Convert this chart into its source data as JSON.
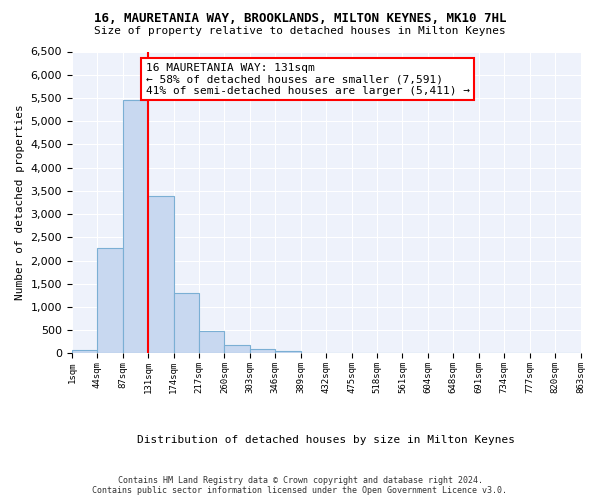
{
  "title": "16, MAURETANIA WAY, BROOKLANDS, MILTON KEYNES, MK10 7HL",
  "subtitle": "Size of property relative to detached houses in Milton Keynes",
  "xlabel": "Distribution of detached houses by size in Milton Keynes",
  "ylabel": "Number of detached properties",
  "bar_heights": [
    75,
    2270,
    5450,
    3400,
    1310,
    490,
    190,
    95,
    55,
    0,
    0,
    0,
    0,
    0,
    0,
    0,
    0,
    0,
    0,
    0
  ],
  "bar_color": "#c8d8f0",
  "bar_edgecolor": "#7bafd4",
  "vline_color": "red",
  "vline_bar_index": 3,
  "annotation_text": "16 MAURETANIA WAY: 131sqm\n← 58% of detached houses are smaller (7,591)\n41% of semi-detached houses are larger (5,411) →",
  "annotation_box_color": "white",
  "annotation_box_edgecolor": "red",
  "ylim": [
    0,
    6500
  ],
  "yticks": [
    0,
    500,
    1000,
    1500,
    2000,
    2500,
    3000,
    3500,
    4000,
    4500,
    5000,
    5500,
    6000,
    6500
  ],
  "bg_color": "#eef2fb",
  "footer": "Contains HM Land Registry data © Crown copyright and database right 2024.\nContains public sector information licensed under the Open Government Licence v3.0.",
  "tick_labels": [
    "1sqm",
    "44sqm",
    "87sqm",
    "131sqm",
    "174sqm",
    "217sqm",
    "260sqm",
    "303sqm",
    "346sqm",
    "389sqm",
    "432sqm",
    "475sqm",
    "518sqm",
    "561sqm",
    "604sqm",
    "648sqm",
    "691sqm",
    "734sqm",
    "777sqm",
    "820sqm",
    "863sqm"
  ]
}
